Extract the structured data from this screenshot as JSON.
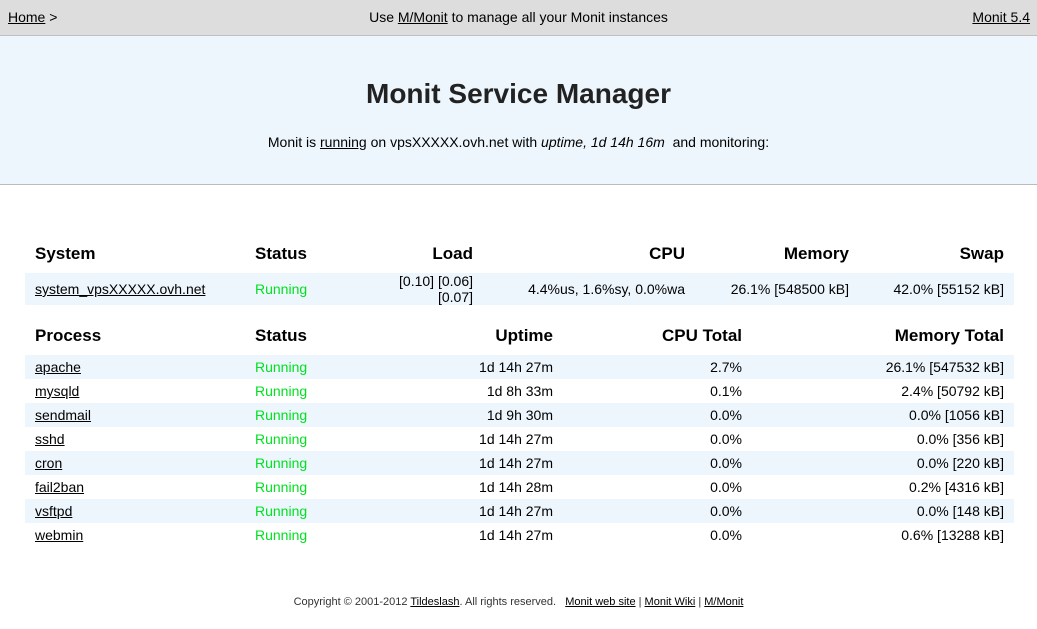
{
  "topbar": {
    "home_label": "Home",
    "home_separator": ">",
    "center_prefix": "Use",
    "center_link": "M/Monit",
    "center_suffix": "to manage all your Monit instances",
    "version_label": "Monit 5.4"
  },
  "header": {
    "title": "Monit Service Manager",
    "status_prefix": "Monit is",
    "status_link": "running",
    "status_host": "on vpsXXXXX.ovh.net with",
    "status_uptime": "uptime, 1d 14h 16m",
    "status_suffix": "and monitoring:"
  },
  "system_table": {
    "headers": [
      "System",
      "Status",
      "Load",
      "CPU",
      "Memory",
      "Swap"
    ],
    "row": {
      "name": "system_vpsXXXXX.ovh.net",
      "status": "Running",
      "load": "[0.10] [0.06] [0.07]",
      "cpu": "4.4%us, 1.6%sy, 0.0%wa",
      "memory": "26.1% [548500 kB]",
      "swap": "42.0% [55152 kB]"
    }
  },
  "process_table": {
    "headers": [
      "Process",
      "Status",
      "Uptime",
      "CPU Total",
      "Memory Total"
    ],
    "rows": [
      {
        "name": "apache",
        "status": "Running",
        "uptime": "1d 14h 27m",
        "cpu": "2.7%",
        "memory": "26.1% [547532 kB]"
      },
      {
        "name": "mysqld",
        "status": "Running",
        "uptime": "1d 8h 33m",
        "cpu": "0.1%",
        "memory": "2.4% [50792 kB]"
      },
      {
        "name": "sendmail",
        "status": "Running",
        "uptime": "1d 9h 30m",
        "cpu": "0.0%",
        "memory": "0.0% [1056 kB]"
      },
      {
        "name": "sshd",
        "status": "Running",
        "uptime": "1d 14h 27m",
        "cpu": "0.0%",
        "memory": "0.0% [356 kB]"
      },
      {
        "name": "cron",
        "status": "Running",
        "uptime": "1d 14h 27m",
        "cpu": "0.0%",
        "memory": "0.0% [220 kB]"
      },
      {
        "name": "fail2ban",
        "status": "Running",
        "uptime": "1d 14h 28m",
        "cpu": "0.0%",
        "memory": "0.2% [4316 kB]"
      },
      {
        "name": "vsftpd",
        "status": "Running",
        "uptime": "1d 14h 27m",
        "cpu": "0.0%",
        "memory": "0.0% [148 kB]"
      },
      {
        "name": "webmin",
        "status": "Running",
        "uptime": "1d 14h 27m",
        "cpu": "0.0%",
        "memory": "0.6% [13288 kB]"
      }
    ]
  },
  "footer": {
    "copyright": "Copyright © 2001-2012",
    "company_link": "Tildeslash",
    "rights": ". All rights reserved.",
    "link_website": "Monit web site",
    "link_wiki": "Monit Wiki",
    "link_mmonit": "M/Monit",
    "separator": "|"
  },
  "colors": {
    "running": "#00e020",
    "stripe": "#eef6fd",
    "topbar": "#dddddd"
  }
}
